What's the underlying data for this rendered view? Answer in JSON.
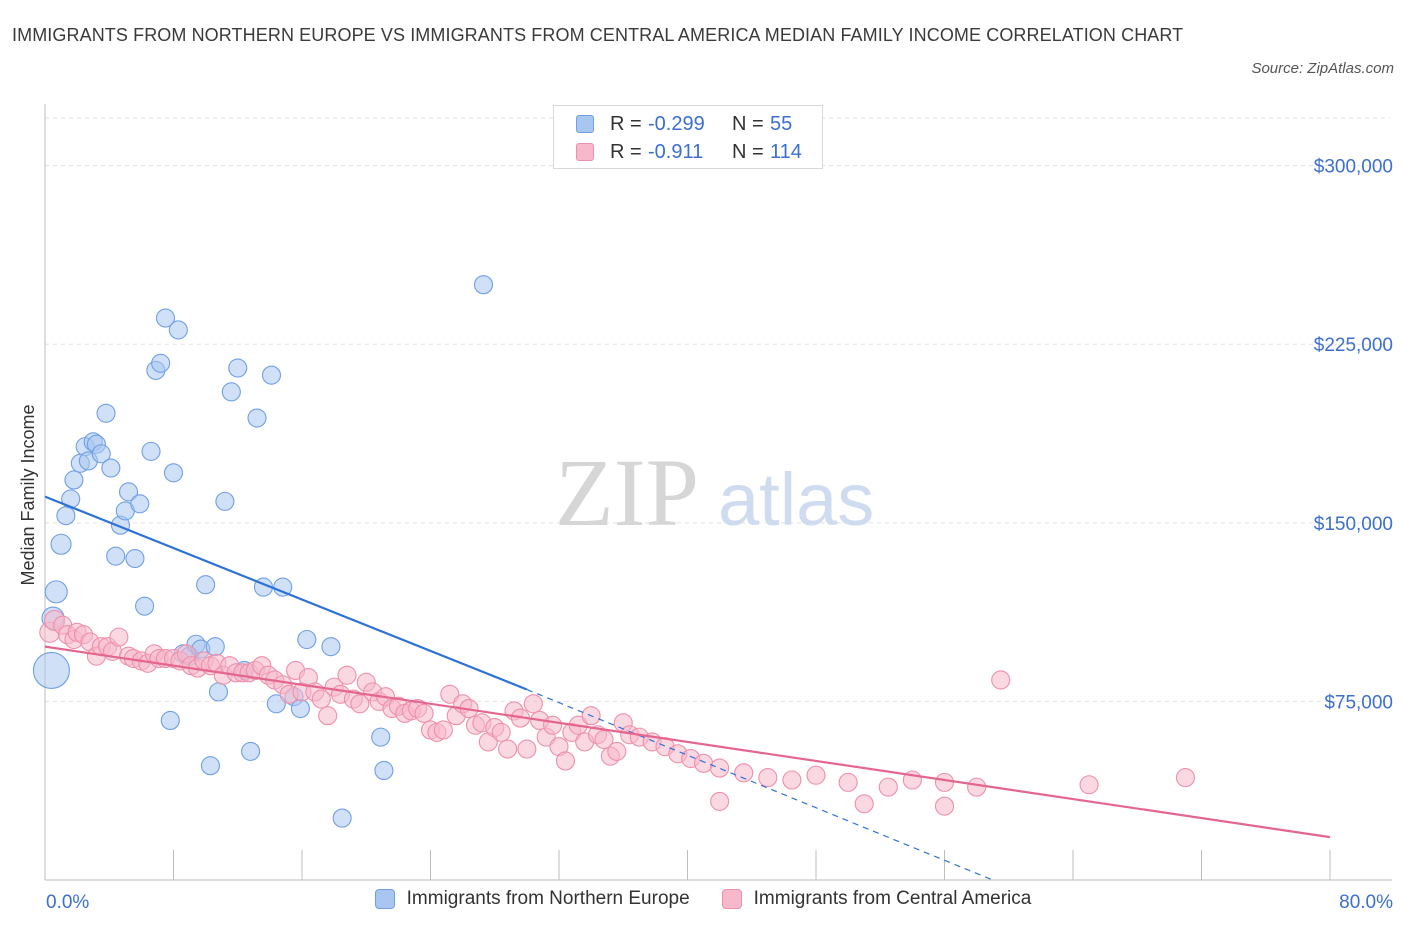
{
  "title": "IMMIGRANTS FROM NORTHERN EUROPE VS IMMIGRANTS FROM CENTRAL AMERICA MEDIAN FAMILY INCOME CORRELATION CHART",
  "source": "Source: ZipAtlas.com",
  "watermark": {
    "zip": "ZIP",
    "atlas": "atlas"
  },
  "legend_top": [
    {
      "r_label": "R =",
      "r_value": "-0.299",
      "n_label": "N =",
      "n_value": "55",
      "color": "#a9c6f1"
    },
    {
      "r_label": "R =",
      "r_value": "-0.911",
      "n_label": "N =",
      "n_value": "114",
      "color": "#f6b8ca"
    }
  ],
  "chart_data": {
    "type": "scatter",
    "title": "IMMIGRANTS FROM NORTHERN EUROPE VS IMMIGRANTS FROM CENTRAL AMERICA MEDIAN FAMILY INCOME CORRELATION CHART",
    "xlabel": "",
    "ylabel": "Median Family Income",
    "xlim": [
      0,
      80
    ],
    "ylim": [
      0,
      320000
    ],
    "x_tick_labels": [
      "0.0%",
      "80.0%"
    ],
    "y_ticks": [
      75000,
      150000,
      225000,
      300000
    ],
    "y_tick_labels": [
      "$75,000",
      "$150,000",
      "$225,000",
      "$300,000"
    ],
    "grid": true,
    "legend_placement": "bottom",
    "series": [
      {
        "name": "Immigrants from Northern Europe",
        "color": "#6f9fe6",
        "fill": "#a9c6f1",
        "line_color": "#2f72d6",
        "trend": {
          "x": [
            0,
            30
          ],
          "y": [
            161000,
            80000
          ],
          "dashed_to": [
            59,
            0
          ]
        },
        "points": [
          [
            0.4,
            88000,
            18
          ],
          [
            0.5,
            110000,
            11
          ],
          [
            0.7,
            121000,
            11
          ],
          [
            1.0,
            141000,
            10
          ],
          [
            1.3,
            153000,
            9
          ],
          [
            1.6,
            160000,
            9
          ],
          [
            1.8,
            168000,
            9
          ],
          [
            2.2,
            175000,
            9
          ],
          [
            2.5,
            182000,
            9
          ],
          [
            2.7,
            176000,
            9
          ],
          [
            3.0,
            184000,
            9
          ],
          [
            3.2,
            183000,
            9
          ],
          [
            3.5,
            179000,
            9
          ],
          [
            3.8,
            196000,
            9
          ],
          [
            4.1,
            173000,
            9
          ],
          [
            4.4,
            136000,
            9
          ],
          [
            4.7,
            149000,
            9
          ],
          [
            5.0,
            155000,
            9
          ],
          [
            5.2,
            163000,
            9
          ],
          [
            5.6,
            135000,
            9
          ],
          [
            5.9,
            158000,
            9
          ],
          [
            6.2,
            115000,
            9
          ],
          [
            6.6,
            180000,
            9
          ],
          [
            6.9,
            214000,
            9
          ],
          [
            7.2,
            217000,
            9
          ],
          [
            7.5,
            236000,
            9
          ],
          [
            7.8,
            67000,
            9
          ],
          [
            8.0,
            171000,
            9
          ],
          [
            8.3,
            231000,
            9
          ],
          [
            8.6,
            95000,
            9
          ],
          [
            9.0,
            94000,
            9
          ],
          [
            9.4,
            99000,
            9
          ],
          [
            9.7,
            97000,
            9
          ],
          [
            10.0,
            124000,
            9
          ],
          [
            10.3,
            48000,
            9
          ],
          [
            10.6,
            98000,
            9
          ],
          [
            10.8,
            79000,
            9
          ],
          [
            11.2,
            159000,
            9
          ],
          [
            11.6,
            205000,
            9
          ],
          [
            12.0,
            215000,
            9
          ],
          [
            12.4,
            88000,
            9
          ],
          [
            12.8,
            54000,
            9
          ],
          [
            13.2,
            194000,
            9
          ],
          [
            13.6,
            123000,
            9
          ],
          [
            14.1,
            212000,
            9
          ],
          [
            14.4,
            74000,
            9
          ],
          [
            14.8,
            123000,
            9
          ],
          [
            15.5,
            77000,
            9
          ],
          [
            15.9,
            72000,
            9
          ],
          [
            16.3,
            101000,
            9
          ],
          [
            17.8,
            98000,
            9
          ],
          [
            18.5,
            26000,
            9
          ],
          [
            20.9,
            60000,
            9
          ],
          [
            21.1,
            46000,
            9
          ],
          [
            27.3,
            250000,
            9
          ]
        ]
      },
      {
        "name": "Immigrants from Central America",
        "color": "#ee8fac",
        "fill": "#f6b8ca",
        "line_color": "#e4668f",
        "trend": {
          "x": [
            0,
            80
          ],
          "y": [
            98000,
            18000
          ]
        },
        "points": [
          [
            0.3,
            104000,
            10
          ],
          [
            0.6,
            109000,
            10
          ],
          [
            1.1,
            107000,
            9
          ],
          [
            1.4,
            103000,
            9
          ],
          [
            1.8,
            101000,
            9
          ],
          [
            2.0,
            104000,
            9
          ],
          [
            2.4,
            103000,
            9
          ],
          [
            2.8,
            100000,
            9
          ],
          [
            3.2,
            94000,
            9
          ],
          [
            3.5,
            98000,
            9
          ],
          [
            3.9,
            98000,
            9
          ],
          [
            4.2,
            96000,
            9
          ],
          [
            4.6,
            102000,
            9
          ],
          [
            5.2,
            94000,
            9
          ],
          [
            5.5,
            93000,
            9
          ],
          [
            6.0,
            92000,
            9
          ],
          [
            6.4,
            91000,
            9
          ],
          [
            6.8,
            95000,
            9
          ],
          [
            7.1,
            93000,
            9
          ],
          [
            7.5,
            93000,
            9
          ],
          [
            8.0,
            93000,
            9
          ],
          [
            8.4,
            92000,
            9
          ],
          [
            8.8,
            95000,
            9
          ],
          [
            9.1,
            90000,
            9
          ],
          [
            9.5,
            89000,
            9
          ],
          [
            9.9,
            92000,
            9
          ],
          [
            10.3,
            90000,
            9
          ],
          [
            10.7,
            91000,
            9
          ],
          [
            11.1,
            86000,
            9
          ],
          [
            11.5,
            90000,
            9
          ],
          [
            11.9,
            87000,
            9
          ],
          [
            12.3,
            87000,
            9
          ],
          [
            12.7,
            87000,
            9
          ],
          [
            13.1,
            88000,
            9
          ],
          [
            13.5,
            90000,
            9
          ],
          [
            13.9,
            86000,
            9
          ],
          [
            14.3,
            84000,
            9
          ],
          [
            14.8,
            82000,
            9
          ],
          [
            15.2,
            78000,
            9
          ],
          [
            15.6,
            88000,
            9
          ],
          [
            16.0,
            79000,
            9
          ],
          [
            16.4,
            85000,
            9
          ],
          [
            16.8,
            79000,
            9
          ],
          [
            17.2,
            76000,
            9
          ],
          [
            17.6,
            69000,
            9
          ],
          [
            18.0,
            81000,
            9
          ],
          [
            18.4,
            78000,
            9
          ],
          [
            18.8,
            86000,
            9
          ],
          [
            19.2,
            76000,
            9
          ],
          [
            19.6,
            74000,
            9
          ],
          [
            20.0,
            83000,
            9
          ],
          [
            20.4,
            79000,
            9
          ],
          [
            20.8,
            75000,
            9
          ],
          [
            21.2,
            77000,
            9
          ],
          [
            21.6,
            72000,
            9
          ],
          [
            22.0,
            73000,
            9
          ],
          [
            22.4,
            70000,
            9
          ],
          [
            22.8,
            71000,
            9
          ],
          [
            23.2,
            72000,
            9
          ],
          [
            23.6,
            70000,
            9
          ],
          [
            24.0,
            63000,
            9
          ],
          [
            24.4,
            62000,
            9
          ],
          [
            24.8,
            63000,
            9
          ],
          [
            25.2,
            78000,
            9
          ],
          [
            25.6,
            69000,
            9
          ],
          [
            26.0,
            74000,
            9
          ],
          [
            26.4,
            72000,
            9
          ],
          [
            26.8,
            65000,
            9
          ],
          [
            27.2,
            66000,
            9
          ],
          [
            27.6,
            58000,
            9
          ],
          [
            28.0,
            64000,
            9
          ],
          [
            28.4,
            62000,
            9
          ],
          [
            28.8,
            55000,
            9
          ],
          [
            29.2,
            71000,
            9
          ],
          [
            29.6,
            68000,
            9
          ],
          [
            30.0,
            55000,
            9
          ],
          [
            30.4,
            74000,
            9
          ],
          [
            30.8,
            67000,
            9
          ],
          [
            31.2,
            60000,
            9
          ],
          [
            31.6,
            65000,
            9
          ],
          [
            32.0,
            56000,
            9
          ],
          [
            32.4,
            50000,
            9
          ],
          [
            32.8,
            62000,
            9
          ],
          [
            33.2,
            65000,
            9
          ],
          [
            33.6,
            58000,
            9
          ],
          [
            34.0,
            69000,
            9
          ],
          [
            34.4,
            61000,
            9
          ],
          [
            34.8,
            59000,
            9
          ],
          [
            35.2,
            52000,
            9
          ],
          [
            35.6,
            54000,
            9
          ],
          [
            36.0,
            66000,
            9
          ],
          [
            36.4,
            61000,
            9
          ],
          [
            37.0,
            60000,
            9
          ],
          [
            37.8,
            58000,
            9
          ],
          [
            38.6,
            56000,
            9
          ],
          [
            39.4,
            53000,
            9
          ],
          [
            40.2,
            51000,
            9
          ],
          [
            41.0,
            49000,
            9
          ],
          [
            42.0,
            47000,
            9
          ],
          [
            43.5,
            45000,
            9
          ],
          [
            45.0,
            43000,
            9
          ],
          [
            46.5,
            42000,
            9
          ],
          [
            48.0,
            44000,
            9
          ],
          [
            50.0,
            41000,
            9
          ],
          [
            52.5,
            39000,
            9
          ],
          [
            54.0,
            42000,
            9
          ],
          [
            56.0,
            41000,
            9
          ],
          [
            58.0,
            39000,
            9
          ],
          [
            59.5,
            84000,
            9
          ],
          [
            65.0,
            40000,
            9
          ],
          [
            71.0,
            43000,
            9
          ],
          [
            42.0,
            33000,
            9
          ],
          [
            51.0,
            32000,
            9
          ],
          [
            56.0,
            31000,
            9
          ]
        ]
      }
    ]
  }
}
